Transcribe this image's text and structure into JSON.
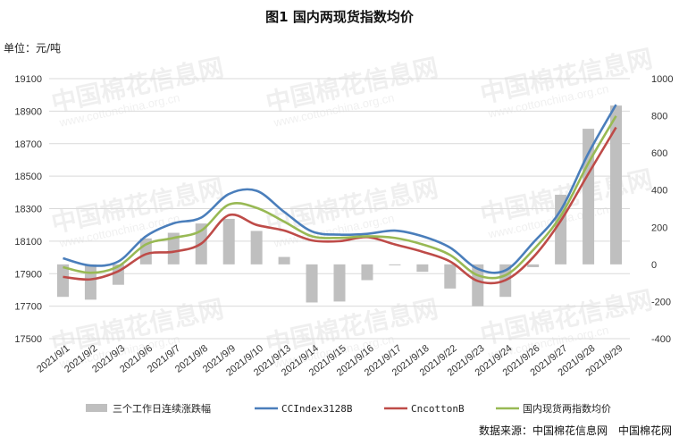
{
  "chart_data": {
    "type": "bar+line",
    "title": "图1 国内两现货指数均价",
    "ylabel_left": "单位：元/吨",
    "ylim_left": [
      17500,
      19100
    ],
    "yticks_left": [
      17500,
      17700,
      17900,
      18100,
      18300,
      18500,
      18700,
      18900,
      19100
    ],
    "ylim_right": [
      -400,
      1000
    ],
    "yticks_right": [
      -400,
      -200,
      0,
      200,
      400,
      600,
      800,
      1000
    ],
    "categories": [
      "2021/9/1",
      "2021/9/2",
      "2021/9/3",
      "2021/9/6",
      "2021/9/7",
      "2021/9/8",
      "2021/9/9",
      "2021/9/10",
      "2021/9/13",
      "2021/9/14",
      "2021/9/15",
      "2021/9/16",
      "2021/9/17",
      "2021/9/18",
      "2021/9/22",
      "2021/9/23",
      "2021/9/24",
      "2021/9/26",
      "2021/9/27",
      "2021/9/28",
      "2021/9/29"
    ],
    "bars": {
      "name": "三个工作日连续涨跌幅",
      "axis": "right",
      "color": "#bfbfbf",
      "values": [
        -175,
        -190,
        -110,
        140,
        170,
        220,
        245,
        180,
        40,
        -205,
        -200,
        -85,
        -5,
        -40,
        -130,
        -225,
        -175,
        -15,
        375,
        730,
        855
      ]
    },
    "series": [
      {
        "name": "CCIndex3128B",
        "axis": "left",
        "color": "#4a7ebb",
        "values": [
          17995,
          17950,
          17975,
          18130,
          18210,
          18245,
          18390,
          18410,
          18280,
          18160,
          18140,
          18145,
          18165,
          18130,
          18060,
          17930,
          17920,
          18090,
          18290,
          18640,
          18940
        ]
      },
      {
        "name": "CncottonB",
        "axis": "left",
        "color": "#be4b48",
        "values": [
          17880,
          17865,
          17915,
          18020,
          18035,
          18085,
          18260,
          18200,
          18165,
          18105,
          18100,
          18125,
          18080,
          18035,
          17975,
          17855,
          17860,
          18000,
          18225,
          18515,
          18800
        ]
      },
      {
        "name": "国内现货两指数均价",
        "axis": "left",
        "color": "#98b954",
        "values": [
          17940,
          17905,
          17945,
          18080,
          18120,
          18165,
          18325,
          18305,
          18220,
          18130,
          18120,
          18130,
          18120,
          18080,
          18015,
          17890,
          17890,
          18045,
          18255,
          18580,
          18870
        ]
      }
    ],
    "grid": true,
    "legend_position": "bottom"
  },
  "source_note": "数据来源：中国棉花信息网　中国棉花网",
  "watermark": {
    "text": "中国棉花信息网",
    "sub": "www.cottonchina.org.cn"
  }
}
